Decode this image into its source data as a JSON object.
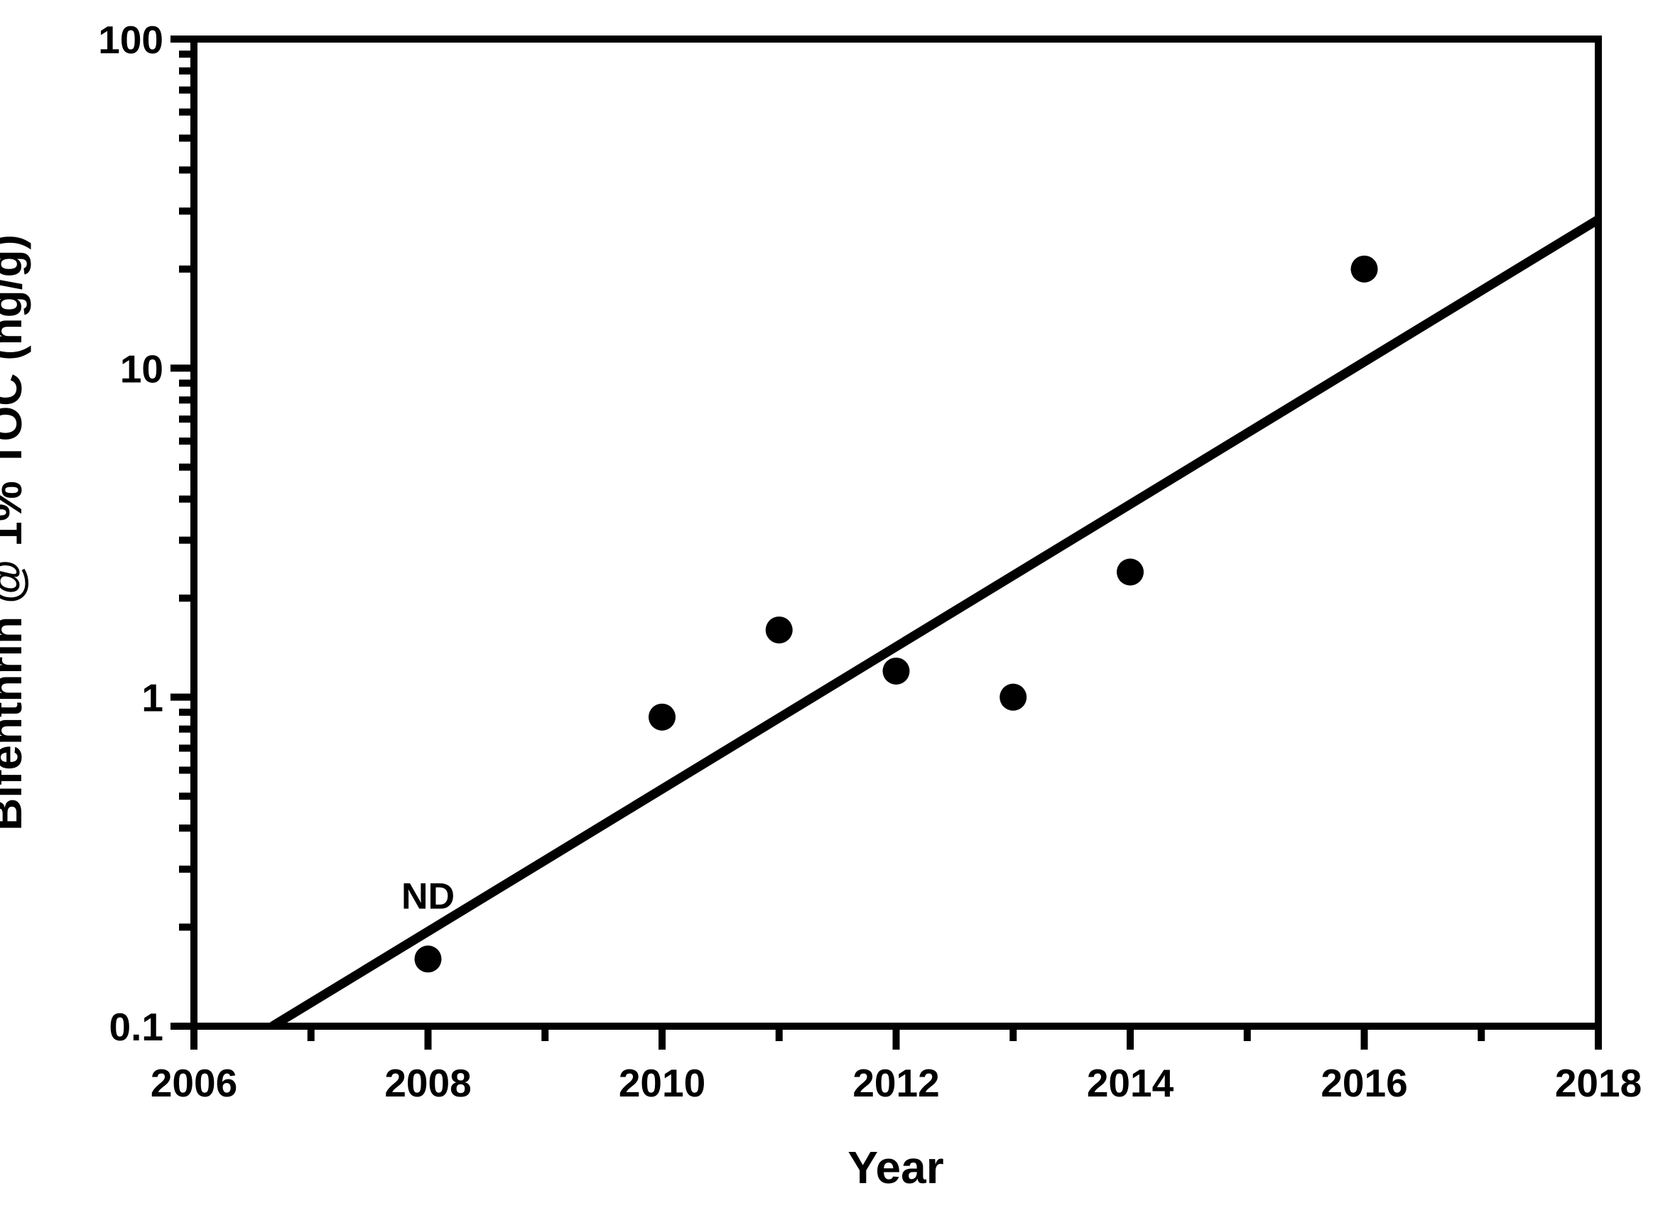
{
  "figure": {
    "background_color": "#ffffff",
    "foreground_color": "#000000"
  },
  "chart_data": {
    "type": "scatter",
    "title": "",
    "xlabel": "Year",
    "ylabel": "Bifenthrin @ 1% TOC (ng/g)",
    "grid": false,
    "legend": "none",
    "x_axis": {
      "scale": "linear",
      "min": 2006,
      "max": 2018,
      "major_ticks": [
        2006,
        2008,
        2010,
        2012,
        2014,
        2016,
        2018
      ],
      "tick_labels": [
        "2006",
        "2008",
        "2010",
        "2012",
        "2014",
        "2016",
        "2018"
      ],
      "minor_tick_interval_years": 1
    },
    "y_axis": {
      "scale": "log",
      "min": 0.1,
      "max": 100,
      "major_ticks": [
        0.1,
        1,
        10,
        100
      ],
      "tick_labels": [
        "0.1",
        "1",
        "10",
        "100"
      ],
      "minor_ticks": "multiples 2-9 within each decade"
    },
    "series": [
      {
        "name": "Bifenthrin at 1% TOC",
        "marker": "filled-circle",
        "color": "#000000",
        "points": [
          {
            "x": 2008,
            "y": 0.16
          },
          {
            "x": 2010,
            "y": 0.87
          },
          {
            "x": 2011,
            "y": 1.6
          },
          {
            "x": 2012,
            "y": 1.2
          },
          {
            "x": 2013,
            "y": 1.0
          },
          {
            "x": 2014,
            "y": 2.4
          },
          {
            "x": 2016,
            "y": 20
          }
        ]
      }
    ],
    "trendline": {
      "color": "#000000",
      "x1": 2006.67,
      "y1": 0.1,
      "x2": 2018,
      "y2": 28.3
    },
    "annotations": [
      {
        "text": "ND",
        "x": 2008,
        "y": 0.25
      }
    ]
  }
}
